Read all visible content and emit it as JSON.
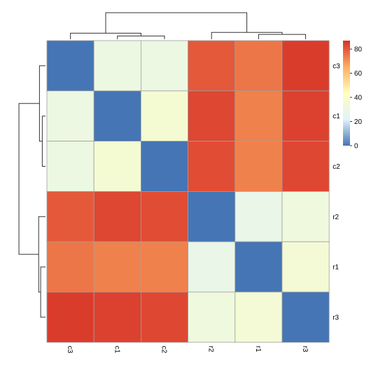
{
  "chart_data": {
    "type": "heatmap",
    "title": "",
    "row_labels": [
      "c3",
      "c1",
      "c2",
      "r2",
      "r1",
      "r3"
    ],
    "col_labels": [
      "c3",
      "c1",
      "c2",
      "r2",
      "r1",
      "r3"
    ],
    "values": [
      [
        0,
        30,
        30,
        80,
        75,
        85
      ],
      [
        30,
        0,
        36,
        83,
        73,
        84
      ],
      [
        30,
        36,
        0,
        82,
        73,
        83
      ],
      [
        80,
        83,
        82,
        0,
        28,
        32
      ],
      [
        75,
        73,
        73,
        28,
        0,
        35
      ],
      [
        85,
        84,
        83,
        32,
        35,
        0
      ]
    ],
    "colorbar": {
      "ticks": [
        0,
        20,
        40,
        60,
        80
      ],
      "tick_labels": [
        "0",
        "20",
        "40",
        "60",
        "80"
      ],
      "range": [
        0,
        87
      ],
      "stops": [
        "#4575b4",
        "#e0f3f8",
        "#ffffbf",
        "#fdae61",
        "#d73027"
      ]
    },
    "row_dendrogram": "left",
    "col_dendrogram": "top",
    "cell_border_color": "#a0a0a0",
    "grid": true
  }
}
